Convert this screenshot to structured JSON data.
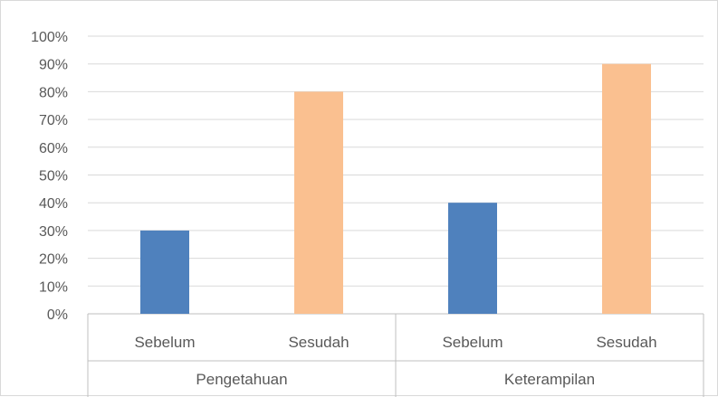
{
  "chart_data": {
    "type": "bar",
    "title": "",
    "xlabel": "",
    "ylabel": "",
    "ylim": [
      0,
      100
    ],
    "y_ticks": [
      "0%",
      "10%",
      "20%",
      "30%",
      "40%",
      "50%",
      "60%",
      "70%",
      "80%",
      "90%",
      "100%"
    ],
    "groups": [
      "Pengetahuan",
      "Keterampilan"
    ],
    "categories": [
      "Sebelum",
      "Sesudah",
      "Sebelum",
      "Sesudah"
    ],
    "values": [
      30,
      80,
      40,
      90
    ],
    "bar_colors": [
      "#4f81bd",
      "#fac090",
      "#4f81bd",
      "#fac090"
    ],
    "grid": true,
    "legend": "none"
  }
}
